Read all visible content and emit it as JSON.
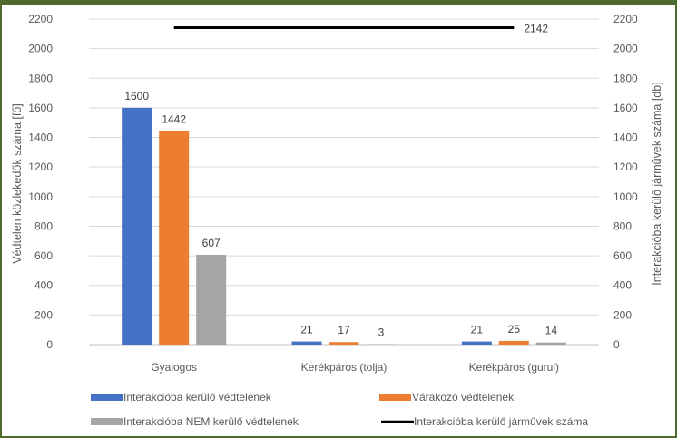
{
  "chart_data": {
    "type": "bar",
    "title": "",
    "xlabel": "",
    "ylabel": "Védtelen közlekedők száma [fő]",
    "ylabel_right": "Interakcióba kerülő járművek száma [db]",
    "ylim": [
      0,
      2200
    ],
    "ylim_right": [
      0,
      2200
    ],
    "yticks": [
      0,
      200,
      400,
      600,
      800,
      1000,
      1200,
      1400,
      1600,
      1800,
      2000,
      2200
    ],
    "grid": true,
    "legend_position": "bottom",
    "categories": [
      "Gyalogos",
      "Kerékpáros (tolja)",
      "Kerékpáros (gurul)"
    ],
    "series": [
      {
        "name": "Interakcióba kerülő védtelenek",
        "type": "bar",
        "axis": "left",
        "color": "#4472c4",
        "values": [
          1600,
          21,
          21
        ]
      },
      {
        "name": "Várakozó védtelenek",
        "type": "bar",
        "axis": "left",
        "color": "#ed7d31",
        "values": [
          1442,
          17,
          25
        ]
      },
      {
        "name": "Interakcióba NEM kerülő védtelenek",
        "type": "bar",
        "axis": "left",
        "color": "#a5a5a5",
        "values": [
          607,
          3,
          14
        ]
      },
      {
        "name": "Interakcióba kerülő járművek száma",
        "type": "line",
        "axis": "right",
        "color": "#000000",
        "values": [
          2142,
          2142,
          2142
        ],
        "label": "2142"
      }
    ]
  }
}
